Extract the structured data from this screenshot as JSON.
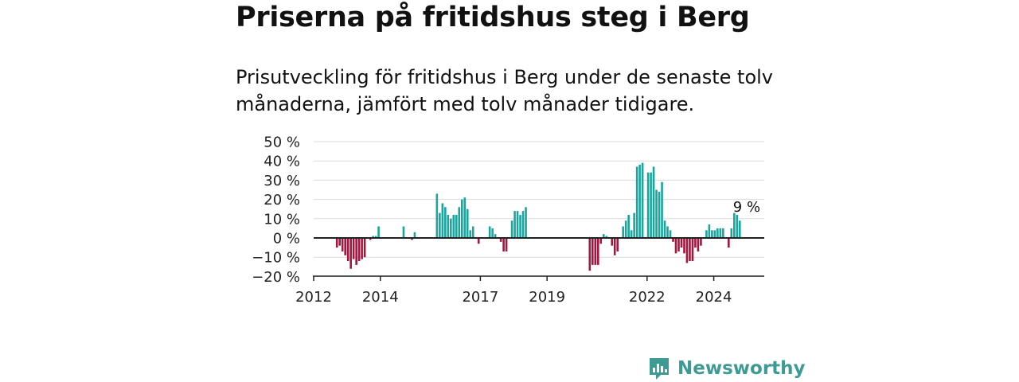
{
  "title": "Priserna på fritidshus steg i Berg",
  "subtitle": "Prisutveckling för fritidshus i Berg under de senaste tolv månaderna, jämfört med tolv månader tidigare.",
  "brand": {
    "name": "Newsworthy",
    "icon": "newsworthy-logo-icon",
    "color": "#3d9b94"
  },
  "colors": {
    "positive": "#1aa59e",
    "negative": "#a3163f",
    "grid": "#dcdcdc",
    "axis": "#222222"
  },
  "chart_data": {
    "type": "bar",
    "ylabel": "",
    "xlabel": "",
    "ylim": [
      -20,
      50
    ],
    "yticks": [
      -20,
      -10,
      0,
      10,
      20,
      30,
      40,
      50
    ],
    "ytick_labels": [
      "−20 %",
      "−10 %",
      "0 %",
      "10 %",
      "20 %",
      "30 %",
      "40 %",
      "50 %"
    ],
    "xticks": [
      {
        "label": "2012",
        "index": 0
      },
      {
        "label": "2014",
        "index": 24
      },
      {
        "label": "2017",
        "index": 60
      },
      {
        "label": "2019",
        "index": 84
      },
      {
        "label": "2022",
        "index": 120
      },
      {
        "label": "2024",
        "index": 144
      }
    ],
    "grid": true,
    "annotation": {
      "text": "9 %",
      "index": 155
    },
    "values": [
      null,
      null,
      null,
      null,
      null,
      null,
      null,
      null,
      -5,
      -4,
      -7,
      -9,
      -12,
      -16,
      -11,
      -14,
      -12,
      -11,
      -10,
      null,
      -1,
      1,
      1,
      6,
      null,
      null,
      null,
      null,
      null,
      null,
      null,
      null,
      6,
      null,
      null,
      -1,
      3,
      null,
      null,
      null,
      null,
      null,
      null,
      null,
      23,
      13,
      18,
      16,
      12,
      10,
      12,
      12,
      16,
      20,
      21,
      15,
      4,
      6,
      null,
      -3,
      null,
      null,
      null,
      6,
      5,
      2,
      null,
      -2,
      -7,
      -7,
      null,
      9,
      14,
      14,
      12,
      14,
      16,
      null,
      null,
      null,
      null,
      null,
      null,
      null,
      null,
      null,
      null,
      null,
      null,
      null,
      null,
      null,
      null,
      null,
      null,
      null,
      null,
      null,
      null,
      -17,
      -14,
      -14,
      -14,
      -3,
      2,
      1,
      null,
      -4,
      -9,
      -7,
      null,
      6,
      9,
      12,
      4,
      13,
      37,
      38,
      39,
      null,
      34,
      34,
      37,
      25,
      24,
      29,
      9,
      6,
      4,
      -2,
      -8,
      -7,
      -5,
      -8,
      -13,
      -12,
      -12,
      -5,
      -7,
      -4,
      null,
      4,
      7,
      4,
      4,
      5,
      5,
      5,
      null,
      -5,
      5,
      13,
      12,
      9
    ]
  }
}
